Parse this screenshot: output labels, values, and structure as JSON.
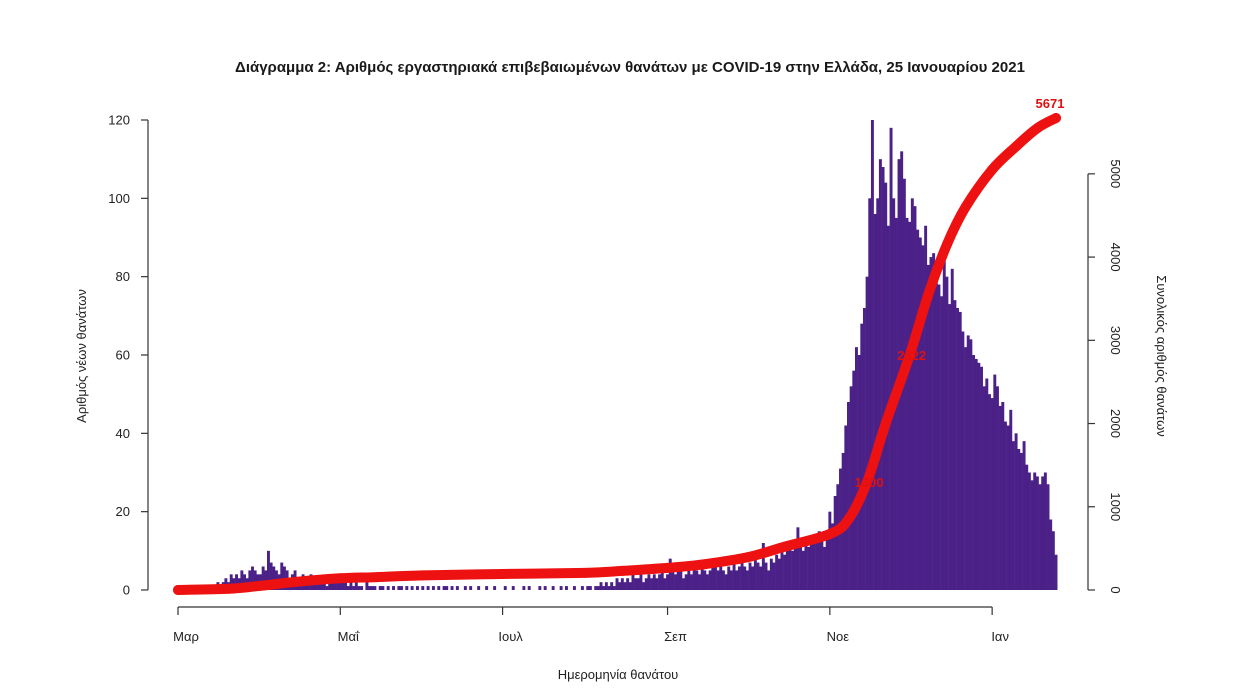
{
  "chart_data": {
    "type": "bar",
    "title": "Διάγραμμα 2: Αριθμός εργαστηριακά επιβεβαιωμένων θανάτων με COVID-19 στην Ελλάδα, 25 Ιανουαρίου 2021",
    "xlabel": "Ημερομηνία θανάτου",
    "ylabel_left": "Αριθμός νέων θανάτων",
    "ylabel_right": "Συνολικός αριθμός θανάτων",
    "ylim_left": [
      0,
      120
    ],
    "yticks_left": [
      "0",
      "20",
      "40",
      "60",
      "80",
      "100",
      "120"
    ],
    "ylim_right": [
      0,
      5671
    ],
    "yticks_right": [
      "0",
      "1000",
      "2000",
      "3000",
      "4000",
      "5000"
    ],
    "x_tick_labels": [
      "Μαρ",
      "Μαΐ",
      "Ιουλ",
      "Σεπ",
      "Νοε",
      "Ιαν"
    ],
    "colors": {
      "bars": "#4b2188",
      "cumulative": "#ee1111"
    },
    "grid": false,
    "series": [
      {
        "name": "Αριθμός νέων θανάτων",
        "kind": "bar",
        "segments": [
          {
            "from": "2020-03-01",
            "to": "2020-03-11",
            "values": [
              0,
              0,
              0,
              0,
              0,
              0,
              0,
              0,
              0,
              0,
              0
            ]
          },
          {
            "from": "2020-03-12",
            "to": "2020-03-31",
            "values": [
              1,
              0,
              1,
              1,
              2,
              1,
              2,
              3,
              2,
              4,
              3,
              4,
              3,
              5,
              4,
              3,
              5,
              6,
              5,
              4
            ]
          },
          {
            "from": "2020-04-01",
            "to": "2020-04-30",
            "values": [
              4,
              6,
              5,
              10,
              7,
              6,
              5,
              4,
              7,
              6,
              5,
              3,
              4,
              5,
              3,
              2,
              4,
              3,
              3,
              4,
              2,
              3,
              2,
              3,
              2,
              1,
              2,
              3,
              2,
              2
            ]
          },
          {
            "from": "2020-05-01",
            "to": "2020-05-31",
            "values": [
              2,
              3,
              2,
              1,
              2,
              1,
              2,
              1,
              1,
              0,
              2,
              1,
              1,
              1,
              0,
              1,
              1,
              0,
              1,
              0,
              1,
              0,
              1,
              1,
              0,
              1,
              0,
              1,
              0,
              1,
              0
            ]
          },
          {
            "from": "2020-06-01",
            "to": "2020-06-30",
            "values": [
              1,
              0,
              1,
              0,
              1,
              0,
              1,
              0,
              1,
              1,
              0,
              1,
              0,
              1,
              0,
              0,
              1,
              0,
              1,
              0,
              0,
              1,
              0,
              0,
              1,
              0,
              0,
              1,
              0,
              0
            ]
          },
          {
            "from": "2020-07-01",
            "to": "2020-07-31",
            "values": [
              0,
              1,
              0,
              0,
              1,
              0,
              0,
              0,
              1,
              0,
              1,
              0,
              0,
              0,
              1,
              0,
              1,
              0,
              0,
              1,
              0,
              0,
              1,
              0,
              1,
              0,
              0,
              1,
              0,
              0,
              1
            ]
          },
          {
            "from": "2020-08-01",
            "to": "2020-08-31",
            "values": [
              0,
              1,
              1,
              0,
              1,
              1,
              2,
              1,
              2,
              1,
              2,
              1,
              3,
              2,
              3,
              2,
              3,
              2,
              4,
              3,
              3,
              4,
              2,
              3,
              4,
              3,
              4,
              3,
              4,
              5,
              3
            ]
          },
          {
            "from": "2020-09-01",
            "to": "2020-09-30",
            "values": [
              4,
              8,
              5,
              4,
              6,
              5,
              3,
              4,
              5,
              4,
              6,
              5,
              4,
              6,
              5,
              4,
              5,
              6,
              7,
              5,
              6,
              5,
              4,
              6,
              5,
              7,
              5,
              6,
              7,
              6
            ]
          },
          {
            "from": "2020-10-01",
            "to": "2020-10-31",
            "values": [
              5,
              7,
              6,
              8,
              7,
              6,
              12,
              7,
              5,
              8,
              7,
              9,
              8,
              10,
              9,
              11,
              12,
              10,
              11,
              16,
              13,
              10,
              12,
              11,
              13,
              14,
              12,
              15,
              13,
              11,
              14
            ]
          },
          {
            "from": "2020-11-01",
            "to": "2020-11-30",
            "values": [
              20,
              17,
              24,
              27,
              31,
              35,
              42,
              48,
              52,
              56,
              62,
              60,
              68,
              72,
              80,
              100,
              120,
              96,
              100,
              110,
              108,
              104,
              93,
              118,
              100,
              95,
              110,
              112,
              105,
              95
            ]
          },
          {
            "from": "2020-12-01",
            "to": "2020-12-31",
            "values": [
              94,
              100,
              98,
              92,
              90,
              88,
              93,
              83,
              85,
              86,
              81,
              78,
              75,
              84,
              80,
              73,
              82,
              74,
              72,
              71,
              66,
              62,
              65,
              64,
              60,
              59,
              58,
              57,
              52,
              54,
              50
            ]
          },
          {
            "from": "2021-01-01",
            "to": "2021-01-25",
            "values": [
              49,
              55,
              52,
              47,
              48,
              43,
              42,
              46,
              38,
              40,
              36,
              35,
              38,
              32,
              30,
              28,
              30,
              29,
              27,
              29,
              30,
              27,
              18,
              15,
              9
            ]
          }
        ]
      },
      {
        "name": "Συνολικός αριθμός θανάτων",
        "kind": "line",
        "points": [
          {
            "date": "2020-03-01",
            "value": 0
          },
          {
            "date": "2020-03-20",
            "value": 15
          },
          {
            "date": "2020-04-01",
            "value": 50
          },
          {
            "date": "2020-04-15",
            "value": 100
          },
          {
            "date": "2020-05-01",
            "value": 140
          },
          {
            "date": "2020-05-15",
            "value": 155
          },
          {
            "date": "2020-06-01",
            "value": 175
          },
          {
            "date": "2020-07-01",
            "value": 192
          },
          {
            "date": "2020-08-01",
            "value": 206
          },
          {
            "date": "2020-08-15",
            "value": 230
          },
          {
            "date": "2020-09-01",
            "value": 266
          },
          {
            "date": "2020-09-15",
            "value": 310
          },
          {
            "date": "2020-10-01",
            "value": 393
          },
          {
            "date": "2020-10-15",
            "value": 520
          },
          {
            "date": "2020-11-01",
            "value": 673
          },
          {
            "date": "2020-11-08",
            "value": 850
          },
          {
            "date": "2020-11-15",
            "value": 1300
          },
          {
            "date": "2020-11-22",
            "value": 2000
          },
          {
            "date": "2020-12-01",
            "value": 2822
          },
          {
            "date": "2020-12-08",
            "value": 3550
          },
          {
            "date": "2020-12-15",
            "value": 4150
          },
          {
            "date": "2020-12-22",
            "value": 4600
          },
          {
            "date": "2021-01-01",
            "value": 5050
          },
          {
            "date": "2021-01-10",
            "value": 5330
          },
          {
            "date": "2021-01-18",
            "value": 5550
          },
          {
            "date": "2021-01-25",
            "value": 5671
          }
        ]
      }
    ],
    "annotations": [
      {
        "text": "1300",
        "date": "2020-11-15",
        "value": 1300
      },
      {
        "text": "2822",
        "date": "2020-12-01",
        "value": 2822
      },
      {
        "text": "5671",
        "date": "2021-01-25",
        "value": 5671
      }
    ]
  }
}
